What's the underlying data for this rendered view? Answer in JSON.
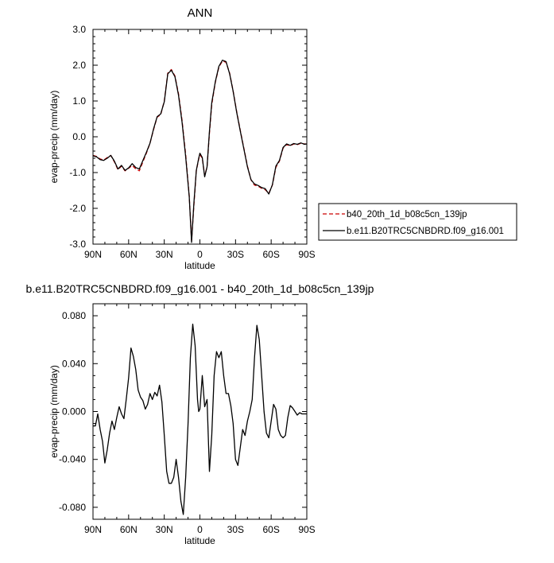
{
  "chart_data": [
    {
      "type": "line",
      "title": "ANN",
      "xlabel": "latitude",
      "ylabel": "evap-precip (mm/day)",
      "xlim": [
        90,
        -90
      ],
      "ylim": [
        -3.0,
        3.0
      ],
      "x_ticks": [
        90,
        60,
        30,
        0,
        -30,
        -60,
        -90
      ],
      "x_tick_labels": [
        "90N",
        "60N",
        "30N",
        "0",
        "30S",
        "60S",
        "90S"
      ],
      "y_ticks": [
        3,
        2,
        1,
        0,
        -1,
        -2,
        -3
      ],
      "y_tick_labels": [
        "3.0",
        "2.0",
        "1.0",
        "0.0",
        "-1.0",
        "-2.0",
        "-3.0"
      ],
      "grid": false,
      "legend_position": "right, outside bottom",
      "series": [
        {
          "name": "b40_20th_1d_b08c5cn_139jp",
          "color": "#cc0000",
          "dash": "dashed",
          "x": [
            90,
            87,
            84,
            81,
            78,
            75,
            72,
            69,
            66,
            63,
            60,
            57,
            54,
            51,
            48,
            45,
            42,
            39,
            36,
            33,
            30,
            27,
            24,
            21,
            18,
            15,
            12,
            9,
            7,
            5,
            3,
            1,
            0,
            -2,
            -4,
            -6,
            -8,
            -10,
            -13,
            -16,
            -19,
            -22,
            -25,
            -28,
            -31,
            -34,
            -37,
            -40,
            -43,
            -46,
            -49,
            -52,
            -55,
            -58,
            -61,
            -64,
            -67,
            -70,
            -73,
            -76,
            -79,
            -82,
            -85,
            -88,
            -90
          ],
          "y": [
            -0.52,
            -0.55,
            -0.62,
            -0.65,
            -0.58,
            -0.52,
            -0.7,
            -0.92,
            -0.82,
            -0.95,
            -0.88,
            -0.8,
            -0.9,
            -0.95,
            -0.7,
            -0.45,
            -0.18,
            0.2,
            0.55,
            0.62,
            1.0,
            1.78,
            1.88,
            1.7,
            1.2,
            0.45,
            -0.5,
            -1.65,
            -2.9,
            -1.9,
            -0.95,
            -0.62,
            -0.5,
            -0.6,
            -1.08,
            -0.85,
            0.1,
            0.9,
            1.52,
            1.95,
            2.12,
            2.08,
            1.78,
            1.28,
            0.7,
            0.18,
            -0.32,
            -0.82,
            -1.2,
            -1.35,
            -1.38,
            -1.44,
            -1.48,
            -1.58,
            -1.35,
            -0.85,
            -0.68,
            -0.32,
            -0.22,
            -0.25,
            -0.2,
            -0.22,
            -0.18,
            -0.2,
            -0.2
          ]
        },
        {
          "name": "b.e11.B20TRC5CNBDRD.f09_g16.001",
          "color": "#000000",
          "dash": "solid",
          "x": [
            90,
            87,
            84,
            81,
            78,
            75,
            72,
            69,
            66,
            63,
            60,
            57,
            54,
            51,
            48,
            45,
            42,
            39,
            36,
            33,
            30,
            27,
            24,
            21,
            18,
            15,
            12,
            9,
            7,
            5,
            3,
            1,
            0,
            -2,
            -4,
            -6,
            -8,
            -10,
            -13,
            -16,
            -19,
            -22,
            -25,
            -28,
            -31,
            -34,
            -37,
            -40,
            -43,
            -46,
            -49,
            -52,
            -55,
            -58,
            -61,
            -64,
            -67,
            -70,
            -73,
            -76,
            -79,
            -82,
            -85,
            -88,
            -90
          ],
          "y": [
            -0.53,
            -0.56,
            -0.64,
            -0.66,
            -0.6,
            -0.52,
            -0.68,
            -0.9,
            -0.8,
            -0.94,
            -0.87,
            -0.75,
            -0.86,
            -0.9,
            -0.66,
            -0.43,
            -0.18,
            0.22,
            0.56,
            0.64,
            0.98,
            1.76,
            1.86,
            1.68,
            1.16,
            0.4,
            -0.56,
            -1.68,
            -2.95,
            -1.83,
            -0.94,
            -0.6,
            -0.46,
            -0.58,
            -1.12,
            -0.84,
            0.15,
            0.95,
            1.54,
            1.97,
            2.14,
            2.1,
            1.76,
            1.27,
            0.68,
            0.16,
            -0.34,
            -0.84,
            -1.2,
            -1.32,
            -1.36,
            -1.42,
            -1.45,
            -1.6,
            -1.34,
            -0.82,
            -0.66,
            -0.3,
            -0.2,
            -0.24,
            -0.19,
            -0.21,
            -0.17,
            -0.21,
            -0.2
          ]
        }
      ]
    },
    {
      "type": "line",
      "title": "b.e11.B20TRC5CNBDRD.f09_g16.001 - b40_20th_1d_b08c5cn_139jp",
      "xlabel": "latitude",
      "ylabel": "evap-precip (mm/day)",
      "xlim": [
        90,
        -90
      ],
      "ylim": [
        -0.09,
        0.09
      ],
      "x_ticks": [
        90,
        60,
        30,
        0,
        -30,
        -60,
        -90
      ],
      "x_tick_labels": [
        "90N",
        "60N",
        "30N",
        "0",
        "30S",
        "60S",
        "90S"
      ],
      "y_ticks": [
        0.08,
        0.04,
        0,
        -0.04,
        -0.08
      ],
      "y_tick_labels": [
        "0.080",
        "0.040",
        "0.000",
        "-0.040",
        "-0.080"
      ],
      "grid": false,
      "series": [
        {
          "color": "#000000",
          "dash": "solid",
          "x": [
            90,
            88,
            86,
            84,
            82,
            80,
            78,
            76,
            74,
            72,
            70,
            68,
            66,
            64,
            62,
            60,
            58,
            56,
            54,
            52,
            50,
            48,
            46,
            44,
            42,
            40,
            38,
            36,
            34,
            32,
            30,
            28,
            26,
            24,
            22,
            20,
            18,
            16,
            14,
            12,
            10,
            8,
            6,
            4,
            2,
            1,
            0,
            -2,
            -4,
            -6,
            -8,
            -10,
            -12,
            -14,
            -16,
            -18,
            -20,
            -22,
            -24,
            -26,
            -28,
            -30,
            -32,
            -34,
            -36,
            -38,
            -40,
            -42,
            -44,
            -46,
            -48,
            -50,
            -52,
            -54,
            -56,
            -58,
            -60,
            -62,
            -64,
            -66,
            -68,
            -70,
            -72,
            -74,
            -76,
            -78,
            -80,
            -82,
            -84,
            -86,
            -88,
            -90
          ],
          "y": [
            -0.012,
            -0.012,
            -0.002,
            -0.015,
            -0.025,
            -0.043,
            -0.032,
            -0.018,
            -0.008,
            -0.015,
            -0.005,
            0.004,
            -0.002,
            -0.006,
            0.01,
            0.028,
            0.053,
            0.046,
            0.035,
            0.018,
            0.012,
            0.009,
            0.002,
            0.006,
            0.015,
            0.01,
            0.016,
            0.013,
            0.022,
            0.008,
            -0.02,
            -0.05,
            -0.06,
            -0.06,
            -0.055,
            -0.04,
            -0.055,
            -0.075,
            -0.086,
            -0.055,
            -0.01,
            0.045,
            0.073,
            0.055,
            0.01,
            0.0,
            0.002,
            0.03,
            0.004,
            0.01,
            -0.05,
            -0.02,
            0.03,
            0.05,
            0.045,
            0.05,
            0.03,
            0.015,
            0.015,
            0.005,
            -0.01,
            -0.04,
            -0.045,
            -0.03,
            -0.015,
            -0.02,
            -0.008,
            0.0,
            0.01,
            0.045,
            0.072,
            0.06,
            0.03,
            0.0,
            -0.018,
            -0.022,
            -0.008,
            0.006,
            0.002,
            -0.015,
            -0.02,
            -0.022,
            -0.02,
            -0.005,
            0.005,
            0.003,
            0.0,
            -0.003,
            -0.001,
            -0.002,
            -0.002,
            -0.002
          ]
        }
      ]
    }
  ]
}
